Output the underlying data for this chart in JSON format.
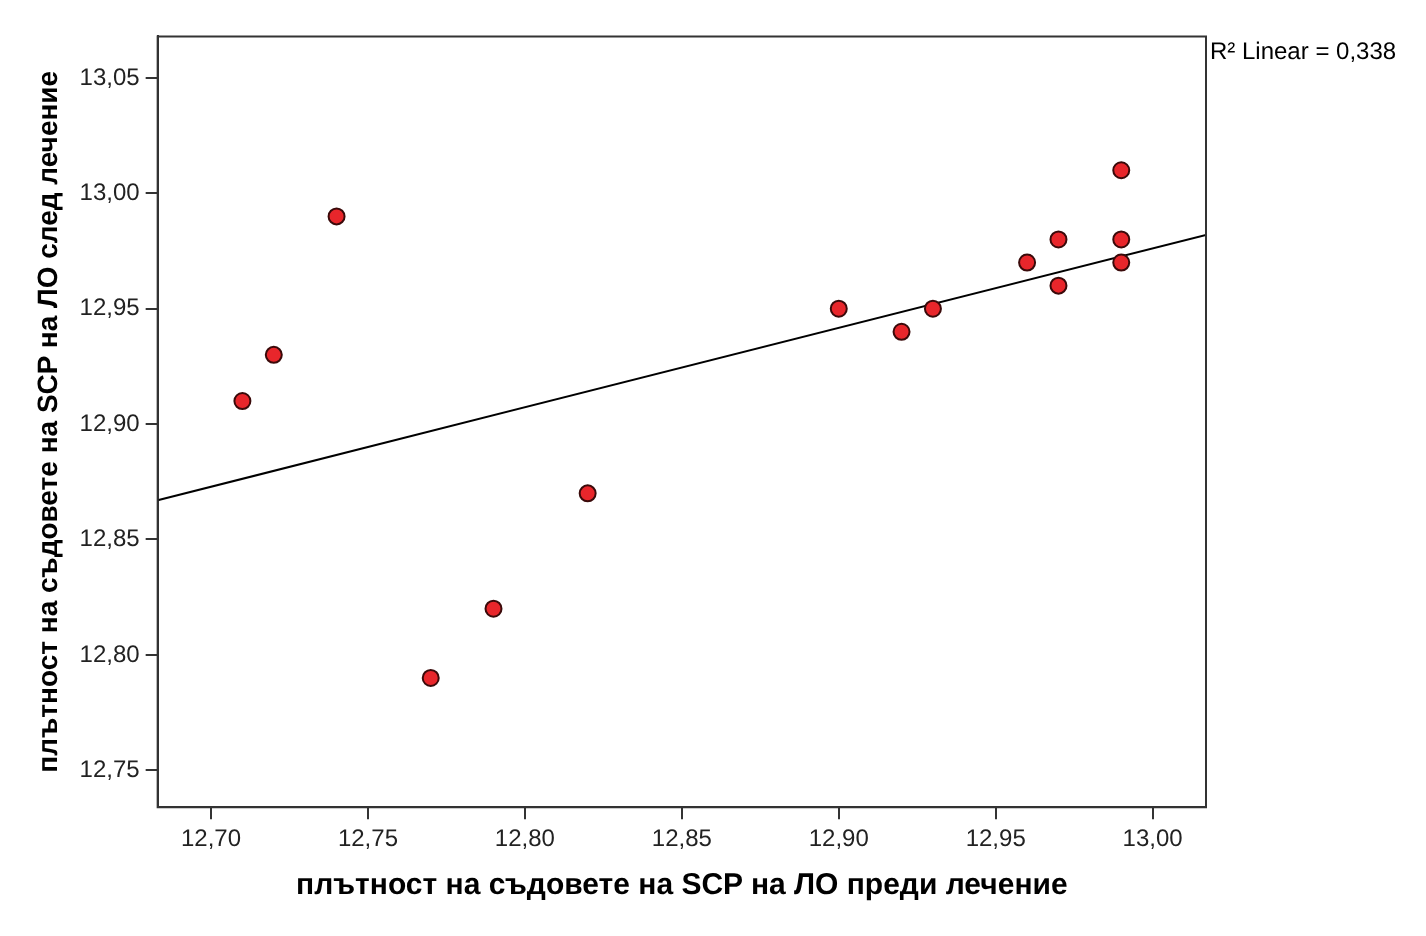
{
  "chart_data": {
    "type": "scatter",
    "xlabel": "плътност на съдовете на SCP на ЛО преди лечение",
    "ylabel": "плътност на съдовете на SCP на ЛО след лечение",
    "annotations": [
      "R² Linear = 0,338"
    ],
    "series": [
      {
        "marker": "circle",
        "color": "#e8262b",
        "x": [
          12.71,
          12.72,
          12.74,
          12.77,
          12.79,
          12.82,
          12.9,
          12.92,
          12.93,
          12.96,
          12.97,
          12.97,
          12.99,
          12.99,
          12.99
        ],
        "values": [
          12.91,
          12.93,
          12.99,
          12.79,
          12.82,
          12.87,
          12.95,
          12.94,
          12.95,
          12.97,
          12.98,
          12.96,
          13.01,
          12.98,
          12.97
        ]
      },
      {
        "type": "line",
        "marker": "none",
        "color": "#000000",
        "x": [
          12.683,
          13.017
        ],
        "values": [
          12.867,
          12.982
        ]
      }
    ],
    "xlim": [
      12.683,
      13.017
    ],
    "ylim": [
      12.734,
      13.068
    ],
    "xticks": [
      {
        "value": 12.7,
        "label": "12,70"
      },
      {
        "value": 12.75,
        "label": "12,75"
      },
      {
        "value": 12.8,
        "label": "12,80"
      },
      {
        "value": 12.85,
        "label": "12,85"
      },
      {
        "value": 12.9,
        "label": "12,90"
      },
      {
        "value": 12.95,
        "label": "12,95"
      },
      {
        "value": 13.0,
        "label": "13,00"
      }
    ],
    "yticks": [
      {
        "value": 12.75,
        "label": "12,75"
      },
      {
        "value": 12.8,
        "label": "12,80"
      },
      {
        "value": 12.85,
        "label": "12,85"
      },
      {
        "value": 12.9,
        "label": "12,90"
      },
      {
        "value": 12.95,
        "label": "12,95"
      },
      {
        "value": 13.0,
        "label": "13,00"
      },
      {
        "value": 13.05,
        "label": "13,05"
      }
    ]
  }
}
